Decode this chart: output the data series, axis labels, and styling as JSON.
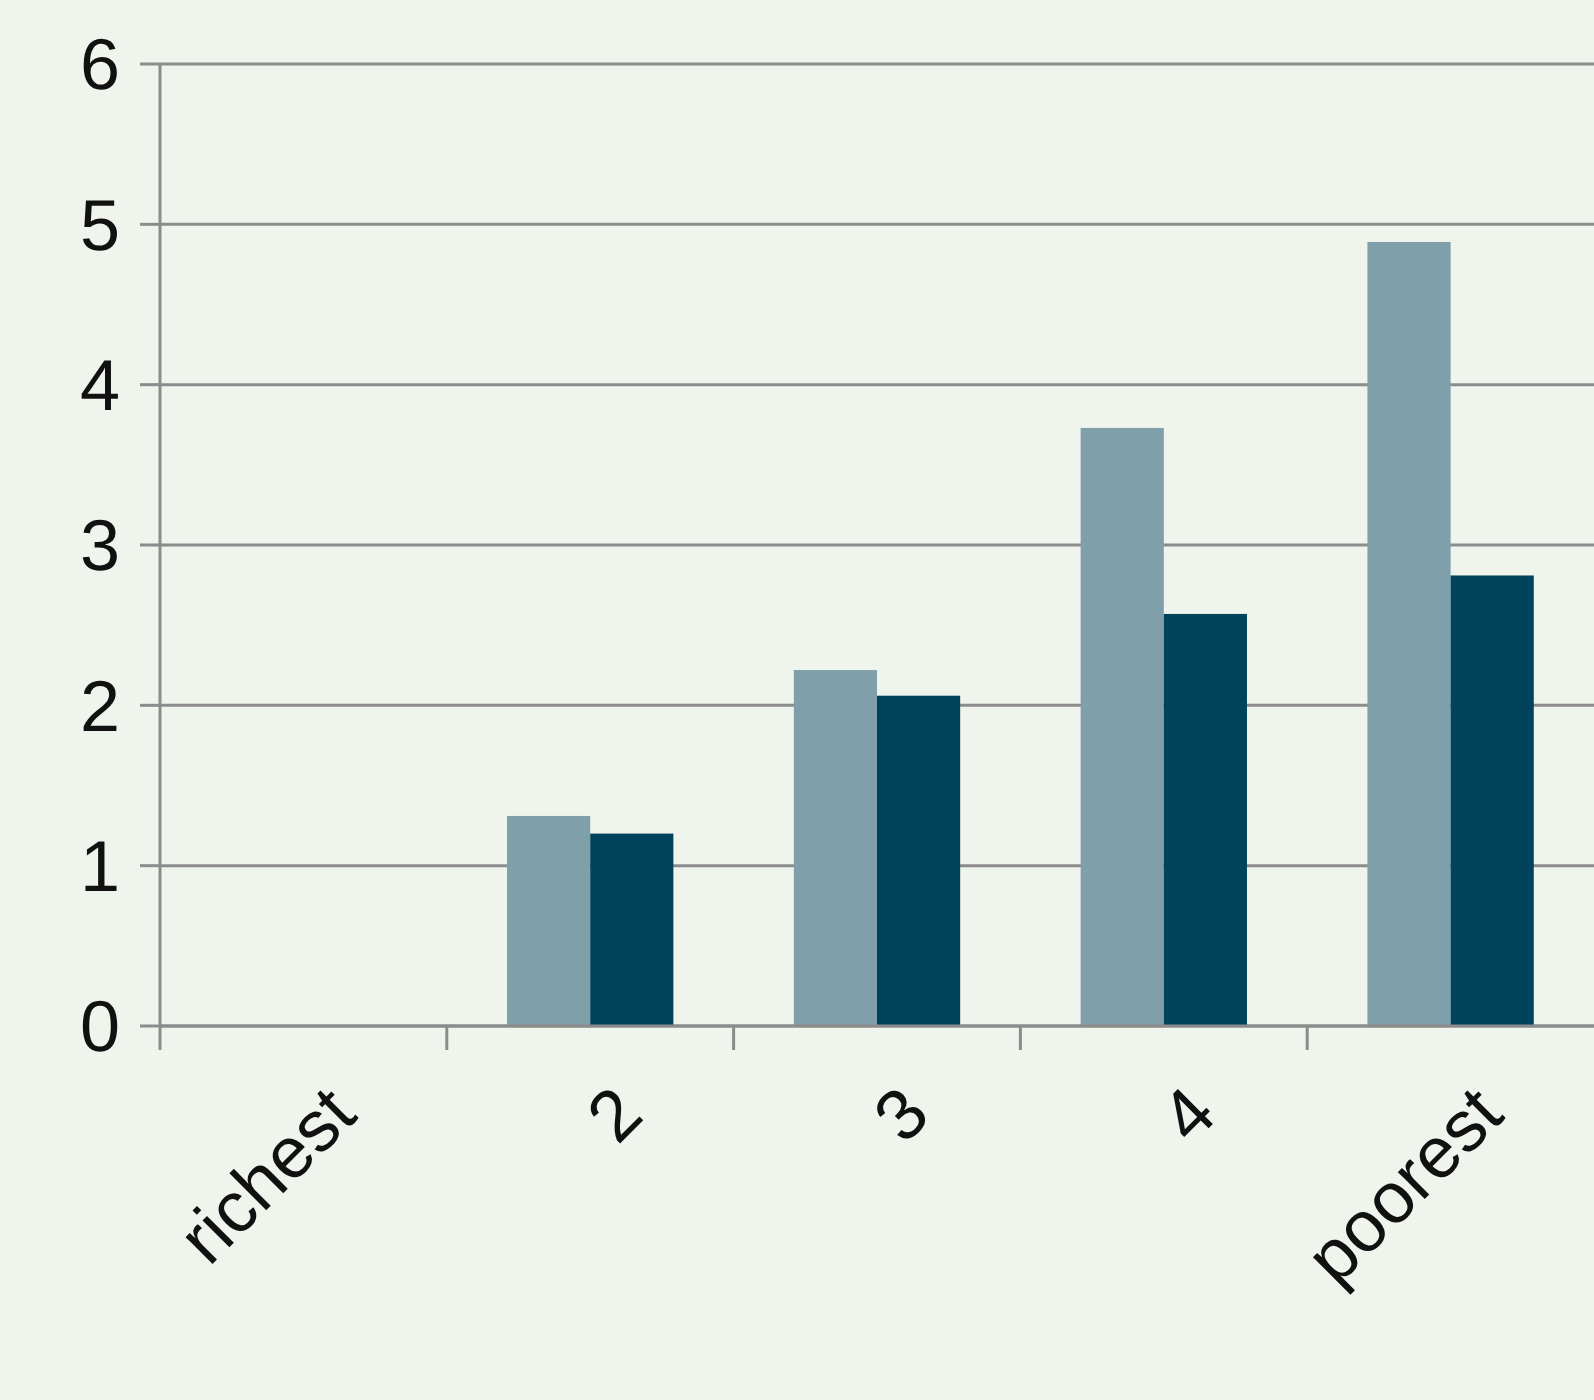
{
  "chart_data": {
    "type": "bar",
    "categories": [
      "richest",
      "2",
      "3",
      "4",
      "poorest"
    ],
    "series": [
      {
        "color": "#7f9fab",
        "values": [
          0,
          1.31,
          2.22,
          3.73,
          4.89
        ]
      },
      {
        "color": "#00435a",
        "values": [
          0,
          1.2,
          2.06,
          2.57,
          2.81
        ]
      }
    ],
    "ylim": [
      0,
      6
    ],
    "yticks": [
      0,
      1,
      2,
      3,
      4,
      5,
      6
    ],
    "grid": "y"
  }
}
